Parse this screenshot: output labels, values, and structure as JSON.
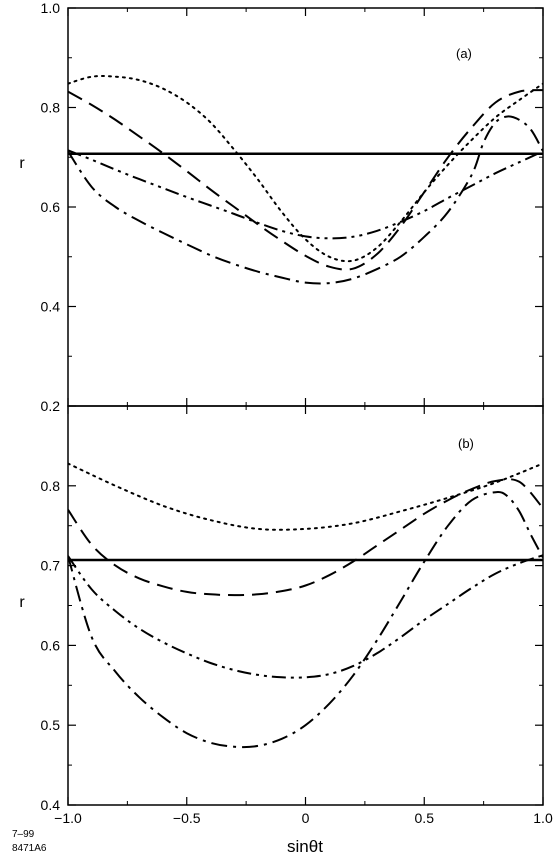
{
  "figure_note": {
    "line1": "7–99",
    "line2": "8471A6"
  },
  "chart_data": [
    {
      "type": "line",
      "panel_label": "(a)",
      "xlabel": "sinθt",
      "ylabel": "r",
      "xlim": [
        -1.0,
        1.0
      ],
      "ylim": [
        0.2,
        1.0
      ],
      "xticks": [
        -1.0,
        -0.5,
        0,
        0.5,
        1.0
      ],
      "xtick_labels": [
        "−1.0",
        "−0.5",
        "0",
        "0.5",
        "1.0"
      ],
      "yticks": [
        0.2,
        0.4,
        0.6,
        0.8,
        1.0
      ],
      "ytick_labels": [
        "0.2",
        "0.4",
        "0.6",
        "0.8",
        "1.0"
      ],
      "grid": false,
      "series": [
        {
          "style": "solid",
          "x": [
            -1.0,
            1.0
          ],
          "y": [
            0.707,
            0.707
          ]
        },
        {
          "style": "dotted",
          "x": [
            -1.0,
            -0.9,
            -0.8,
            -0.7,
            -0.6,
            -0.5,
            -0.4,
            -0.3,
            -0.2,
            -0.1,
            0.0,
            0.1,
            0.2,
            0.3,
            0.4,
            0.5,
            0.6,
            0.7,
            0.8,
            0.9,
            1.0
          ],
          "y": [
            0.848,
            0.862,
            0.862,
            0.855,
            0.838,
            0.81,
            0.77,
            0.715,
            0.655,
            0.59,
            0.535,
            0.5,
            0.492,
            0.518,
            0.57,
            0.63,
            0.685,
            0.735,
            0.78,
            0.815,
            0.848
          ]
        },
        {
          "style": "dashed",
          "x": [
            -1.0,
            -0.9,
            -0.8,
            -0.7,
            -0.6,
            -0.5,
            -0.4,
            -0.3,
            -0.2,
            -0.1,
            0.0,
            0.1,
            0.2,
            0.3,
            0.4,
            0.5,
            0.6,
            0.7,
            0.8,
            0.9,
            1.0
          ],
          "y": [
            0.832,
            0.805,
            0.775,
            0.742,
            0.708,
            0.672,
            0.635,
            0.6,
            0.565,
            0.532,
            0.502,
            0.48,
            0.476,
            0.505,
            0.56,
            0.63,
            0.7,
            0.76,
            0.81,
            0.832,
            0.835
          ]
        },
        {
          "style": "dash-dot",
          "x": [
            -1.0,
            -0.9,
            -0.8,
            -0.7,
            -0.6,
            -0.5,
            -0.4,
            -0.3,
            -0.2,
            -0.1,
            0.0,
            0.1,
            0.2,
            0.3,
            0.4,
            0.5,
            0.6,
            0.7,
            0.75,
            0.8,
            0.85,
            0.9,
            0.95,
            1.0
          ],
          "y": [
            0.712,
            0.64,
            0.6,
            0.572,
            0.548,
            0.525,
            0.503,
            0.485,
            0.47,
            0.458,
            0.448,
            0.447,
            0.456,
            0.475,
            0.5,
            0.54,
            0.59,
            0.665,
            0.73,
            0.77,
            0.782,
            0.775,
            0.755,
            0.712
          ]
        },
        {
          "style": "dash-dot-dot",
          "x": [
            -1.0,
            -0.9,
            -0.8,
            -0.7,
            -0.6,
            -0.5,
            -0.4,
            -0.3,
            -0.2,
            -0.1,
            0.0,
            0.1,
            0.2,
            0.3,
            0.4,
            0.5,
            0.6,
            0.7,
            0.8,
            0.9,
            1.0
          ],
          "y": [
            0.714,
            0.695,
            0.675,
            0.656,
            0.638,
            0.62,
            0.603,
            0.586,
            0.568,
            0.552,
            0.541,
            0.537,
            0.54,
            0.552,
            0.57,
            0.592,
            0.618,
            0.643,
            0.668,
            0.69,
            0.712
          ]
        }
      ]
    },
    {
      "type": "line",
      "panel_label": "(b)",
      "xlabel": "sinθt",
      "ylabel": "r",
      "xlim": [
        -1.0,
        1.0
      ],
      "ylim": [
        0.4,
        0.9
      ],
      "xticks": [
        -1.0,
        -0.5,
        0,
        0.5,
        1.0
      ],
      "xtick_labels": [
        "−1.0",
        "−0.5",
        "0",
        "0.5",
        "1.0"
      ],
      "yticks": [
        0.4,
        0.5,
        0.6,
        0.7,
        0.8
      ],
      "ytick_labels": [
        "0.4",
        "0.5",
        "0.6",
        "0.7",
        "0.8"
      ],
      "grid": false,
      "series": [
        {
          "style": "solid",
          "x": [
            -1.0,
            1.0
          ],
          "y": [
            0.707,
            0.707
          ]
        },
        {
          "style": "dotted",
          "x": [
            -1.0,
            -0.8,
            -0.6,
            -0.4,
            -0.2,
            0.0,
            0.2,
            0.4,
            0.6,
            0.8,
            1.0
          ],
          "y": [
            0.828,
            0.8,
            0.775,
            0.757,
            0.746,
            0.746,
            0.753,
            0.768,
            0.785,
            0.804,
            0.828
          ]
        },
        {
          "style": "dashed",
          "x": [
            -1.0,
            -0.9,
            -0.8,
            -0.7,
            -0.6,
            -0.5,
            -0.4,
            -0.3,
            -0.2,
            -0.1,
            0.0,
            0.1,
            0.2,
            0.3,
            0.4,
            0.5,
            0.6,
            0.7,
            0.8,
            0.9,
            1.0
          ],
          "y": [
            0.77,
            0.726,
            0.7,
            0.684,
            0.674,
            0.667,
            0.664,
            0.663,
            0.664,
            0.668,
            0.675,
            0.688,
            0.705,
            0.725,
            0.745,
            0.765,
            0.782,
            0.796,
            0.806,
            0.805,
            0.772
          ]
        },
        {
          "style": "dash-dot",
          "x": [
            -1.0,
            -0.9,
            -0.8,
            -0.7,
            -0.6,
            -0.5,
            -0.4,
            -0.3,
            -0.2,
            -0.1,
            0.0,
            0.1,
            0.2,
            0.3,
            0.4,
            0.5,
            0.6,
            0.7,
            0.8,
            0.85,
            0.9,
            0.95,
            1.0
          ],
          "y": [
            0.712,
            0.61,
            0.567,
            0.535,
            0.51,
            0.49,
            0.478,
            0.473,
            0.474,
            0.483,
            0.5,
            0.527,
            0.562,
            0.606,
            0.655,
            0.705,
            0.75,
            0.782,
            0.792,
            0.787,
            0.768,
            0.738,
            0.71
          ]
        },
        {
          "style": "dash-dot-dot",
          "x": [
            -1.0,
            -0.9,
            -0.8,
            -0.7,
            -0.6,
            -0.5,
            -0.4,
            -0.3,
            -0.2,
            -0.1,
            0.0,
            0.1,
            0.2,
            0.3,
            0.4,
            0.5,
            0.6,
            0.7,
            0.8,
            0.9,
            1.0
          ],
          "y": [
            0.712,
            0.67,
            0.643,
            0.621,
            0.604,
            0.59,
            0.578,
            0.569,
            0.563,
            0.56,
            0.56,
            0.564,
            0.574,
            0.59,
            0.61,
            0.632,
            0.652,
            0.672,
            0.69,
            0.703,
            0.713
          ]
        }
      ]
    }
  ]
}
